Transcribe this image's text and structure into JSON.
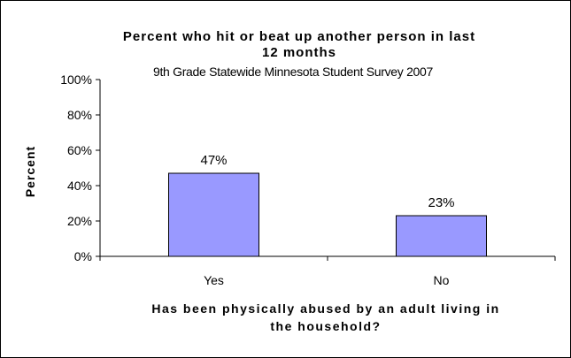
{
  "chart_data": {
    "type": "bar",
    "title_line1": "Percent who hit or beat up another person in last",
    "title_line2": "12 months",
    "subtitle": "9th Grade Statewide Minnesota Student Survey 2007",
    "ylabel": "Percent",
    "xlabel_line1": "Has been physically abused by an adult living in",
    "xlabel_line2": "the household?",
    "categories": [
      "Yes",
      "No"
    ],
    "values": [
      47,
      23
    ],
    "data_labels": [
      "47%",
      "23%"
    ],
    "ylim": [
      0,
      100
    ],
    "yticks": [
      "0%",
      "20%",
      "40%",
      "60%",
      "80%",
      "100%"
    ],
    "bar_color": "#9999ff",
    "grid": false,
    "legend": "none"
  }
}
